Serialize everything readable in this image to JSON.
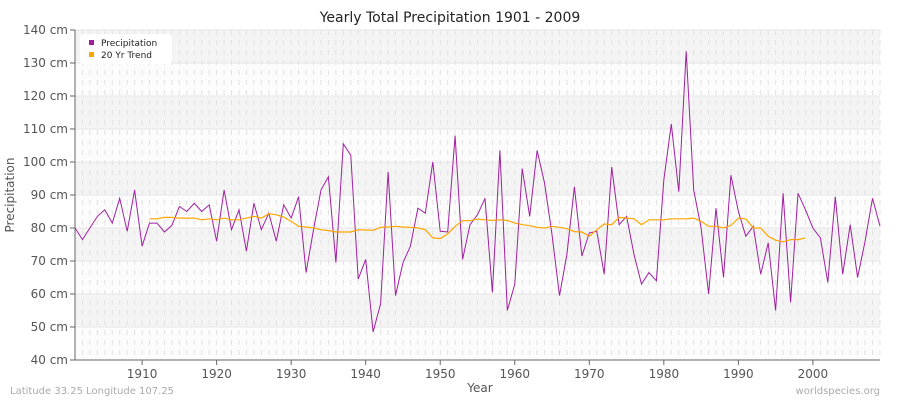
{
  "chart_data": {
    "type": "line",
    "title": "Yearly Total Precipitation 1901 - 2009",
    "xlabel": "Year",
    "ylabel": "Precipitation",
    "xlim": [
      1901,
      2009
    ],
    "ylim": [
      40,
      140
    ],
    "y_ticks": [
      "40 cm",
      "50 cm",
      "60 cm",
      "70 cm",
      "80 cm",
      "90 cm",
      "100 cm",
      "110 cm",
      "120 cm",
      "130 cm",
      "140 cm"
    ],
    "y_tick_values": [
      40,
      50,
      60,
      70,
      80,
      90,
      100,
      110,
      120,
      130,
      140
    ],
    "x_ticks": [
      1910,
      1920,
      1930,
      1940,
      1950,
      1960,
      1970,
      1980,
      1990,
      2000
    ],
    "grid": true,
    "legend_position": "top-left",
    "series": [
      {
        "name": "Precipitation",
        "color": "#a020a0",
        "x_start": 1901,
        "values": [
          80,
          76.5,
          80,
          83.5,
          85.5,
          81.5,
          89,
          79,
          91.5,
          74.5,
          81.5,
          81.5,
          78.8,
          80.8,
          86.5,
          85,
          87.5,
          85,
          87,
          76,
          91.5,
          79.5,
          85.5,
          73,
          87.5,
          79.5,
          84.5,
          76,
          87,
          83,
          89.5,
          66.5,
          79.5,
          91.5,
          95.5,
          69.5,
          105.5,
          102,
          64.5,
          70.5,
          48.5,
          57,
          97,
          59.5,
          69.5,
          74.5,
          86,
          84.5,
          100,
          79,
          78.8,
          108,
          70.5,
          81,
          84,
          89,
          60.5,
          103.5,
          55,
          63,
          98,
          83.5,
          103.5,
          93.5,
          78,
          59.5,
          72,
          92.5,
          71.5,
          78.5,
          79,
          66,
          98.5,
          81,
          83.5,
          72,
          63,
          66.5,
          64,
          94.5,
          111.5,
          91,
          133.5,
          91.5,
          80,
          60,
          86,
          65,
          96,
          85,
          77.5,
          80.5,
          66,
          75.5,
          55,
          90.5,
          57.5,
          90.5,
          85.5,
          80,
          77,
          63.5,
          89.5,
          66,
          81,
          65,
          76,
          89,
          80.5
        ]
      },
      {
        "name": "20 Yr Trend",
        "color": "#ffa500",
        "x_start": 1911,
        "values": [
          82.8,
          82.8,
          83.2,
          83.2,
          83,
          83,
          83,
          82.5,
          82.8,
          82.5,
          83,
          82.5,
          82.5,
          83,
          83.5,
          83,
          84.3,
          84,
          83.3,
          82,
          80.5,
          80.3,
          80,
          79.5,
          79.2,
          78.8,
          78.8,
          78.8,
          79.5,
          79.4,
          79.3,
          80.2,
          80.3,
          80.5,
          80.3,
          80.2,
          80,
          79.5,
          77,
          76.8,
          78.2,
          80.5,
          82.2,
          82.2,
          82.7,
          82.5,
          82.3,
          82.5,
          82.3,
          81.5,
          81,
          80.7,
          80.2,
          80,
          80.5,
          80.2,
          79.8,
          78.9,
          78.8,
          77.5,
          79.5,
          81.2,
          81,
          83.2,
          83,
          82.8,
          81,
          82.5,
          82.5,
          82.5,
          82.8,
          82.8,
          82.8,
          83,
          82,
          80.5,
          80.5,
          80,
          80.8,
          83,
          82.8,
          80,
          80,
          77.5,
          76.3,
          75.8,
          76.5,
          76.5,
          77
        ]
      }
    ]
  },
  "footer": {
    "left": "Latitude 33.25 Longitude 107.25",
    "right": "worldspecies.org"
  }
}
